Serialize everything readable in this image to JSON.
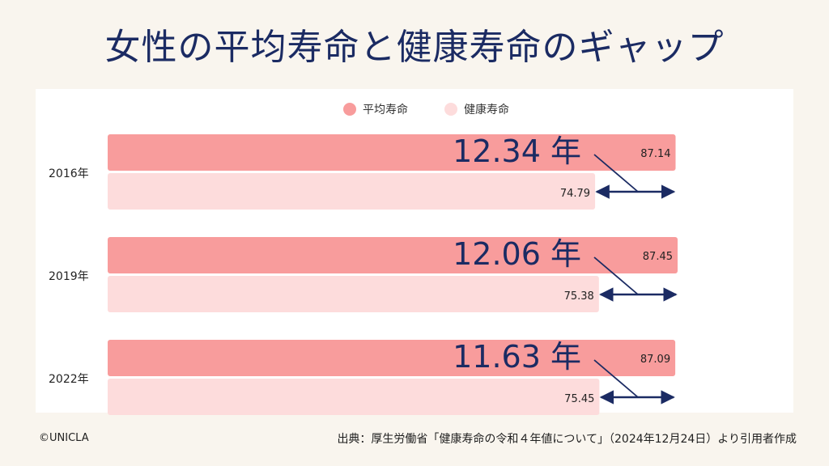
{
  "title": "女性の平均寿命と健康寿命のギャップ",
  "credit": "©UNICLA",
  "source": "出典：厚生労働省「健康寿命の令和４年値について」（2024年12月24日）より引用者作成",
  "colors": {
    "avg": "#f89c9c",
    "healthy": "#fddcdc",
    "navy": "#1b2b63"
  },
  "chart_data": {
    "type": "bar",
    "orientation": "horizontal",
    "legend_position": "top-center",
    "categories": [
      "2016年",
      "2019年",
      "2022年"
    ],
    "series": [
      {
        "name": "平均寿命",
        "values": [
          87.14,
          87.45,
          87.09
        ],
        "labels": [
          "87.14",
          "87.45",
          "87.09"
        ]
      },
      {
        "name": "健康寿命",
        "values": [
          74.79,
          75.38,
          75.45
        ],
        "labels": [
          "74.79",
          "75.38",
          "75.45"
        ]
      }
    ],
    "gap_labels": [
      "12.34 年",
      "12.06 年",
      "11.63 年"
    ]
  }
}
